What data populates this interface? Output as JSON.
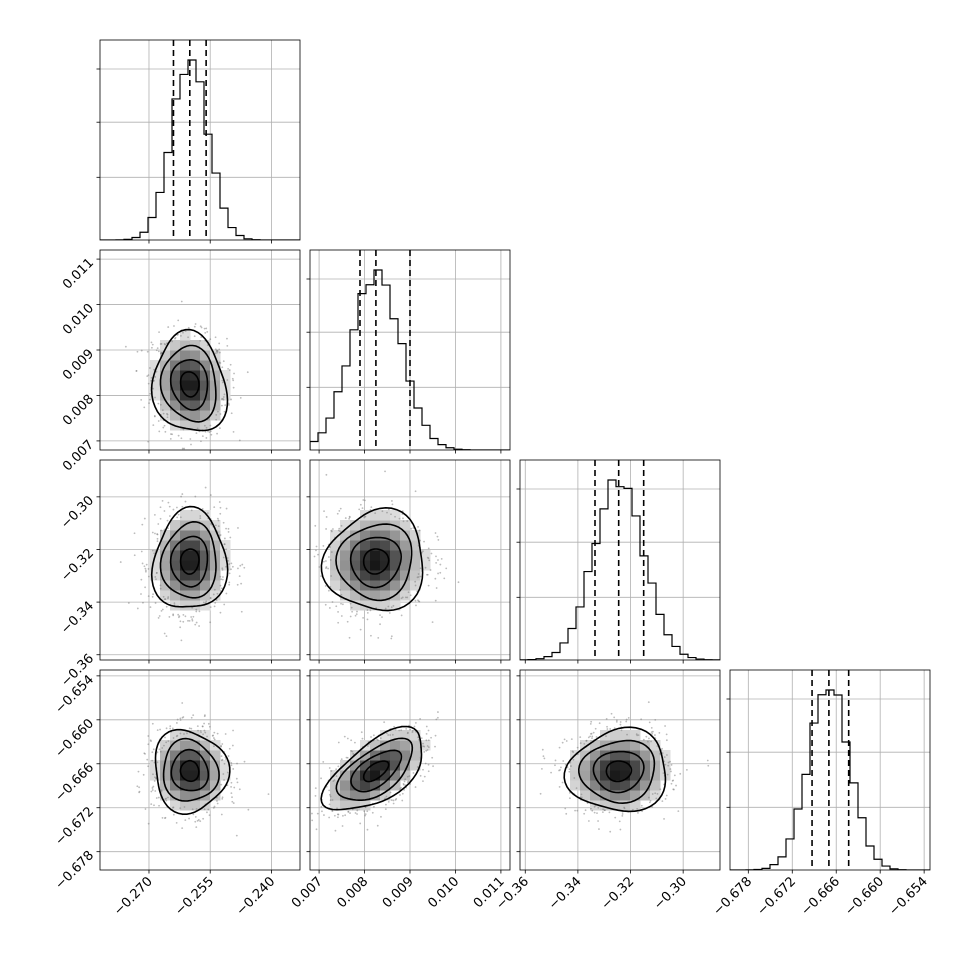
{
  "chart_data": {
    "type": "corner",
    "grid": true,
    "parameters": [
      {
        "median": -0.26,
        "q16": -0.264,
        "q84": -0.256,
        "sigma": 0.0045,
        "range": [
          -0.282,
          -0.233
        ],
        "ticks": [
          -0.27,
          -0.255,
          -0.24
        ],
        "tick_labels": [
          "−0.270",
          "−0.255",
          "−0.240"
        ],
        "hist_bins": [
          -0.282,
          -0.233
        ]
      },
      {
        "median": 0.00825,
        "q16": 0.0079,
        "q84": 0.009,
        "sigma": 0.00055,
        "range": [
          0.0068,
          0.0112
        ],
        "ticks": [
          0.007,
          0.008,
          0.009,
          0.01,
          0.011
        ],
        "tick_labels": [
          "0.007",
          "0.008",
          "0.009",
          "0.010",
          "0.011"
        ]
      },
      {
        "median": -0.3245,
        "q16": -0.3335,
        "q84": -0.315,
        "sigma": 0.0095,
        "range": [
          -0.362,
          -0.286
        ],
        "ticks": [
          -0.36,
          -0.34,
          -0.32,
          -0.3
        ],
        "tick_labels": [
          "−0.36",
          "−0.34",
          "−0.32",
          "−0.30"
        ]
      },
      {
        "median": -0.667,
        "q16": -0.6693,
        "q84": -0.6643,
        "sigma": 0.0028,
        "range": [
          -0.6805,
          -0.6532
        ],
        "ticks": [
          -0.678,
          -0.672,
          -0.666,
          -0.66,
          -0.654
        ],
        "tick_labels": [
          "−0.678",
          "−0.672",
          "−0.666",
          "−0.660",
          "−0.654"
        ]
      }
    ],
    "correlations": [
      [
        1.0,
        -0.1,
        0.05,
        -0.05
      ],
      [
        -0.1,
        1.0,
        0.05,
        0.6
      ],
      [
        0.05,
        0.05,
        1.0,
        0.05
      ],
      [
        -0.05,
        0.6,
        0.05,
        1.0
      ]
    ],
    "histogram": {
      "bins": 25,
      "style": "step",
      "quantiles": [
        0.16,
        0.5,
        0.84
      ]
    },
    "contour_levels_sigma": [
      0.5,
      1.0,
      1.5,
      2.0
    ],
    "colors": {
      "line": "#000000",
      "grid": "#b0b0b0",
      "points": "#7a7a7a"
    }
  }
}
